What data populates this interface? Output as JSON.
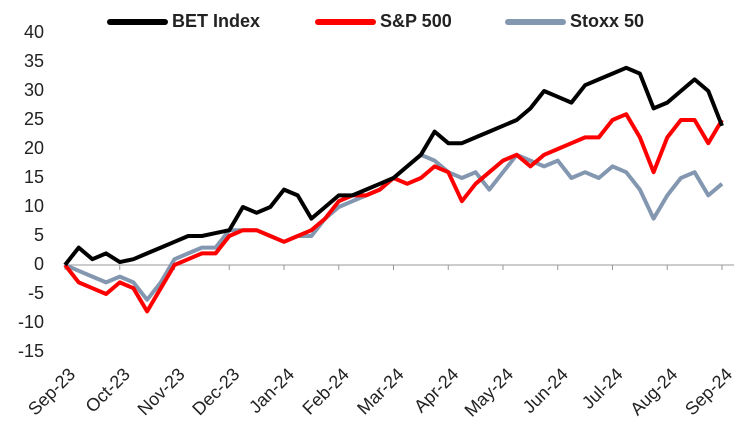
{
  "chart_data": {
    "type": "line",
    "categories": [
      "Sep-23",
      null,
      null,
      null,
      "Oct-23",
      null,
      null,
      null,
      "Nov-23",
      null,
      null,
      null,
      "Dec-23",
      null,
      null,
      null,
      "Jan-24",
      null,
      null,
      null,
      "Feb-24",
      null,
      null,
      null,
      "Mar-24",
      null,
      null,
      null,
      "Apr-24",
      null,
      null,
      null,
      "May-24",
      null,
      null,
      null,
      "Jun-24",
      null,
      null,
      null,
      "Jul-24",
      null,
      null,
      null,
      "Aug-24",
      null,
      null,
      null,
      "Sep-24"
    ],
    "series": [
      {
        "name": "BET Index",
        "color": "#000000",
        "values": [
          0,
          3,
          1,
          2,
          0.5,
          1,
          2,
          3,
          4,
          5,
          5,
          5.5,
          6,
          10,
          9,
          10,
          13,
          12,
          8,
          10,
          12,
          12,
          13,
          14,
          15,
          17,
          19,
          23,
          21,
          21,
          22,
          23,
          24,
          25,
          27,
          30,
          29,
          28,
          31,
          32,
          33,
          34,
          33,
          27,
          28,
          30,
          32,
          30,
          24
        ]
      },
      {
        "name": "S&P 500",
        "color": "#ff0000",
        "values": [
          0,
          -3,
          -4,
          -5,
          -3,
          -4,
          -8,
          -4,
          0,
          1,
          2,
          2,
          5,
          6,
          6,
          5,
          4,
          5,
          6,
          8,
          11,
          12,
          12,
          13,
          15,
          14,
          15,
          17,
          16,
          11,
          14,
          16,
          18,
          19,
          17,
          19,
          20,
          21,
          22,
          22,
          25,
          26,
          22,
          16,
          22,
          25,
          25,
          21,
          25
        ]
      },
      {
        "name": "Stoxx 50",
        "color": "#8497b0",
        "values": [
          0,
          -1,
          -2,
          -3,
          -2,
          -3,
          -6,
          -3,
          1,
          2,
          3,
          3,
          6,
          6,
          6,
          5,
          4,
          5,
          5,
          8,
          10,
          11,
          12,
          13,
          15,
          17,
          19,
          18,
          16,
          15,
          16,
          13,
          16,
          19,
          18,
          17,
          18,
          15,
          16,
          15,
          17,
          16,
          13,
          8,
          12,
          15,
          16,
          12,
          14
        ]
      }
    ],
    "ylim": [
      -15,
      40
    ],
    "yticks": [
      -15,
      -10,
      -5,
      0,
      5,
      10,
      15,
      20,
      25,
      30,
      35,
      40
    ],
    "legend": "top"
  }
}
